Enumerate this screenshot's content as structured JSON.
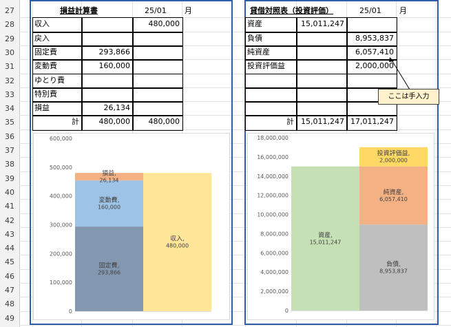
{
  "rows": [
    "27",
    "28",
    "29",
    "30",
    "31",
    "32",
    "33",
    "34",
    "35",
    "36",
    "37",
    "38",
    "39",
    "40",
    "41",
    "42",
    "43",
    "44",
    "45",
    "46",
    "47",
    "48",
    "49"
  ],
  "pl": {
    "title": "損益計算書",
    "date": "25/01",
    "month": "月",
    "rows": [
      {
        "label": "収入",
        "c1": "",
        "c2": "480,000"
      },
      {
        "label": "戻入",
        "c1": "",
        "c2": ""
      },
      {
        "label": "固定費",
        "c1": "293,866",
        "c2": ""
      },
      {
        "label": "変動費",
        "c1": "160,000",
        "c2": ""
      },
      {
        "label": "ゆとり費",
        "c1": "",
        "c2": ""
      },
      {
        "label": "特別費",
        "c1": "",
        "c2": ""
      },
      {
        "label": "損益",
        "c1": "26,134",
        "c2": ""
      },
      {
        "label": "計",
        "c1": "480,000",
        "c2": "480,000"
      }
    ]
  },
  "bs": {
    "title": "貸借対照表（投資評価）",
    "date": "25/01",
    "month": "月",
    "rows": [
      {
        "label": "資産",
        "c1": "15,011,247",
        "c2": ""
      },
      {
        "label": "負債",
        "c1": "",
        "c2": "8,953,837"
      },
      {
        "label": "純資産",
        "c1": "",
        "c2": "6,057,410"
      },
      {
        "label": "投資評価益",
        "c1": "",
        "c2": "2,000,000"
      },
      {
        "label": "",
        "c1": "",
        "c2": ""
      },
      {
        "label": "",
        "c1": "",
        "c2": ""
      },
      {
        "label": "",
        "c1": "",
        "c2": ""
      },
      {
        "label": "計",
        "c1": "15,011,247",
        "c2": "17,011,247"
      }
    ]
  },
  "note": "ここは手入力",
  "chart_data": [
    {
      "type": "bar",
      "stacked": true,
      "ylim": [
        0,
        600000
      ],
      "yticks": [
        "600,000",
        "500,000",
        "400,000",
        "300,000",
        "200,000",
        "100,000",
        "0"
      ],
      "columns": [
        {
          "segments": [
            {
              "name": "固定費",
              "value": 293866,
              "label": "固定費,\n293,866",
              "color": "#8497b0"
            },
            {
              "name": "変動費",
              "value": 160000,
              "label": "変動費,\n160,000",
              "color": "#9dc3e6"
            },
            {
              "name": "損益",
              "value": 26134,
              "label": "損益,\n26,134",
              "color": "#f4b183"
            }
          ]
        },
        {
          "segments": [
            {
              "name": "収入",
              "value": 480000,
              "label": "収入,\n480,000",
              "color": "#ffe699"
            }
          ]
        }
      ]
    },
    {
      "type": "bar",
      "stacked": true,
      "ylim": [
        0,
        18000000
      ],
      "yticks": [
        "18,000,000",
        "16,000,000",
        "14,000,000",
        "12,000,000",
        "10,000,000",
        "8,000,000",
        "6,000,000",
        "4,000,000",
        "2,000,000",
        "0"
      ],
      "columns": [
        {
          "segments": [
            {
              "name": "資産",
              "value": 15011247,
              "label": "資産,\n15,011,247",
              "color": "#c5e0b4"
            }
          ]
        },
        {
          "segments": [
            {
              "name": "負債",
              "value": 8953837,
              "label": "負債,\n8,953,837",
              "color": "#bfbfbf"
            },
            {
              "name": "純資産",
              "value": 6057410,
              "label": "純資産,\n6,057,410",
              "color": "#f4b183"
            },
            {
              "name": "投資評価益",
              "value": 2000000,
              "label": "投資評価益,\n2,000,000",
              "color": "#ffd966"
            }
          ]
        }
      ]
    }
  ]
}
